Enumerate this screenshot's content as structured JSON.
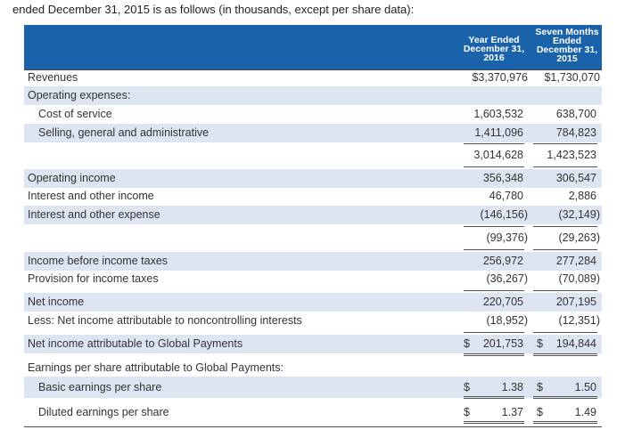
{
  "intro": "ended December 31, 2015 is as follows (in thousands, except per share data):",
  "header": {
    "col1": [
      "Year Ended",
      "December 31,",
      "2016"
    ],
    "col2": [
      "Seven Months",
      "Ended",
      "December 31,",
      "2015"
    ]
  },
  "rows": {
    "revenues": {
      "label": "Revenues",
      "v1": "$3,370,976",
      "v2": "$1,730,070"
    },
    "opex": {
      "label": "Operating expenses:"
    },
    "cost_of_service": {
      "label": "Cost of service",
      "v1": "1,603,532",
      "v2": "638,700"
    },
    "sga": {
      "label": "Selling, general and administrative",
      "v1": "1,411,096",
      "v2": "784,823"
    },
    "total_opex": {
      "v1": "3,014,628",
      "v2": "1,423,523"
    },
    "operating_income": {
      "label": "Operating income",
      "v1": "356,348",
      "v2": "306,547"
    },
    "interest_income": {
      "label": "Interest and other income",
      "v1": "46,780",
      "v2": "2,886"
    },
    "interest_expense": {
      "label": "Interest and other expense",
      "v1": "(146,156)",
      "v2": "(32,149)"
    },
    "interest_net": {
      "v1": "(99,376)",
      "v2": "(29,263)"
    },
    "income_before_tax": {
      "label": "Income before income taxes",
      "v1": "256,972",
      "v2": "277,284"
    },
    "provision_tax": {
      "label": "Provision for income taxes",
      "v1": "(36,267)",
      "v2": "(70,089)"
    },
    "net_income": {
      "label": "Net income",
      "v1": "220,705",
      "v2": "207,195"
    },
    "nci": {
      "label": "Less: Net income attributable to noncontrolling interests",
      "v1": "(18,952)",
      "v2": "(12,351)"
    },
    "net_income_gp": {
      "label": "Net income attributable to Global Payments",
      "d1": "$",
      "v1": "201,753",
      "d2": "$",
      "v2": "194,844"
    },
    "eps_header": {
      "label": "Earnings per share attributable to Global Payments:"
    },
    "basic_eps": {
      "label": "Basic earnings per share",
      "d1": "$",
      "v1": "1.38",
      "d2": "$",
      "v2": "1.50"
    },
    "diluted_eps": {
      "label": "Diluted earnings per share",
      "d1": "$",
      "v1": "1.37",
      "d2": "$",
      "v2": "1.49"
    }
  }
}
